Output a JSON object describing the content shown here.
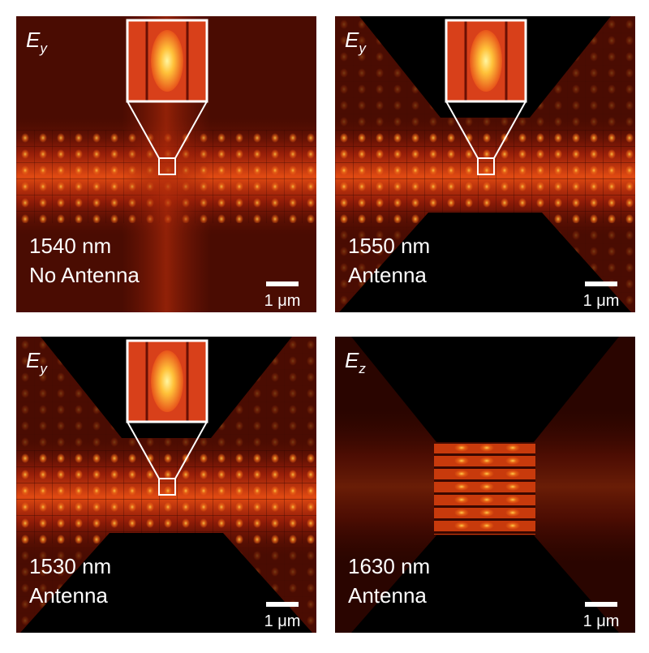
{
  "panels": [
    {
      "field": {
        "symbol": "E",
        "subscript": "y"
      },
      "wavelength": "1540 nm",
      "configuration": "No Antenna",
      "scale_bar": "1 μm"
    },
    {
      "field": {
        "symbol": "E",
        "subscript": "y"
      },
      "wavelength": "1550 nm",
      "configuration": "Antenna",
      "scale_bar": "1 μm"
    },
    {
      "field": {
        "symbol": "E",
        "subscript": "y"
      },
      "wavelength": "1530 nm",
      "configuration": "Antenna",
      "scale_bar": "1 μm"
    },
    {
      "field": {
        "symbol": "E",
        "subscript": "z"
      },
      "wavelength": "1630 nm",
      "configuration": "Antenna",
      "scale_bar": "1 μm"
    }
  ]
}
